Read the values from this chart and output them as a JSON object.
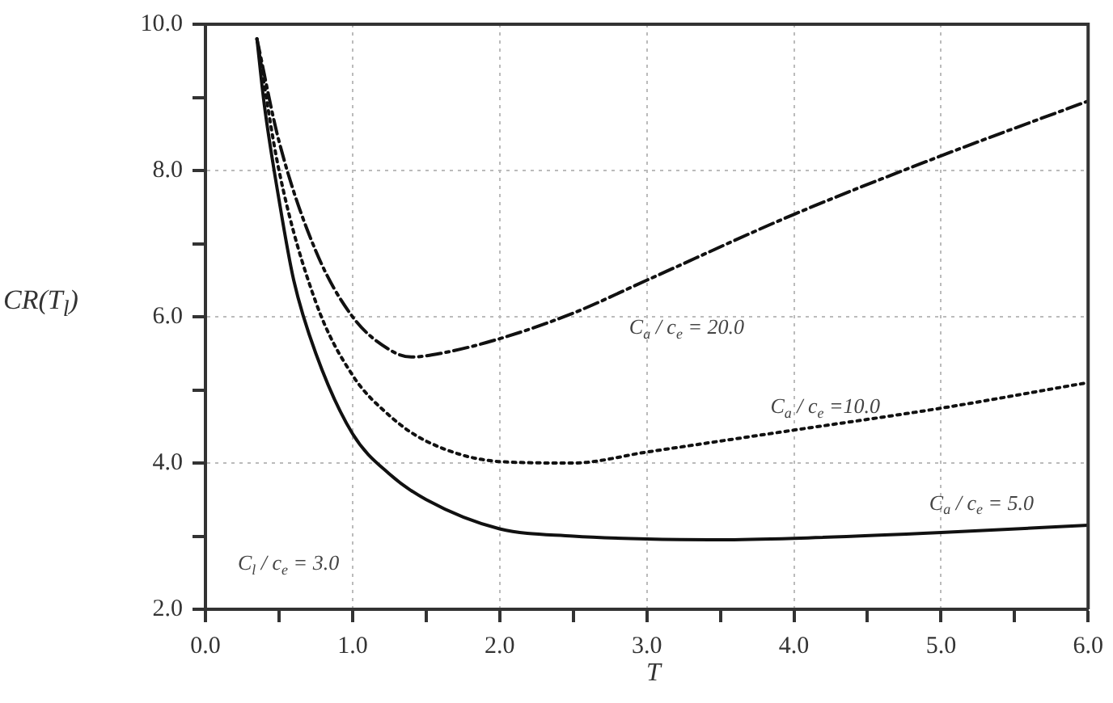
{
  "chart_data": {
    "type": "line",
    "xlabel": "T",
    "ylabel": "CR(T$_{l}$)",
    "xlim": [
      0,
      6
    ],
    "ylim": [
      2,
      10
    ],
    "xticks": [
      {
        "value": 0,
        "label": "0.0"
      },
      {
        "value": 0.5,
        "label": null
      },
      {
        "value": 1,
        "label": "1.0"
      },
      {
        "value": 1.5,
        "label": null
      },
      {
        "value": 2,
        "label": "2.0"
      },
      {
        "value": 2.5,
        "label": null
      },
      {
        "value": 3,
        "label": "3.0"
      },
      {
        "value": 3.5,
        "label": null
      },
      {
        "value": 4,
        "label": "4.0"
      },
      {
        "value": 4.5,
        "label": null
      },
      {
        "value": 5,
        "label": "5.0"
      },
      {
        "value": 5.5,
        "label": null
      },
      {
        "value": 6,
        "label": "6.0"
      }
    ],
    "yticks": [
      {
        "value": 2,
        "label": "2.0"
      },
      {
        "value": 3,
        "label": null
      },
      {
        "value": 4,
        "label": "4.0"
      },
      {
        "value": 5,
        "label": null
      },
      {
        "value": 6,
        "label": "6.0"
      },
      {
        "value": 7,
        "label": null
      },
      {
        "value": 8,
        "label": "8.0"
      },
      {
        "value": 9,
        "label": null
      },
      {
        "value": 10,
        "label": "10.0"
      }
    ],
    "grid": true,
    "legend": false,
    "marker": "none",
    "series": [
      {
        "name": "C$_{a}$ / c$_{e}$ = 5.0",
        "color": "#111111",
        "line_style": "solid",
        "x": [
          0.35,
          0.4,
          0.5,
          0.6,
          0.75,
          1.0,
          1.25,
          1.5,
          2.0,
          2.5,
          3.0,
          3.5,
          4.0,
          5.0,
          6.0
        ],
        "values": [
          9.8,
          8.9,
          7.6,
          6.5,
          5.5,
          4.4,
          3.85,
          3.5,
          3.1,
          3.0,
          2.96,
          2.95,
          2.97,
          3.05,
          3.15
        ]
      },
      {
        "name": "C$_{a}$ / c$_{e}$ =10.0",
        "color": "#111111",
        "line_style": "dotted",
        "x": [
          0.35,
          0.5,
          0.75,
          1.0,
          1.25,
          1.5,
          2.0,
          2.5,
          3.0,
          4.0,
          5.0,
          6.0
        ],
        "values": [
          9.8,
          8.0,
          6.2,
          5.2,
          4.65,
          4.3,
          4.02,
          4.0,
          4.15,
          4.45,
          4.75,
          5.1
        ]
      },
      {
        "name": "C$_{a}$ / c$_{e}$ = 20.0",
        "color": "#111111",
        "line_style": "dashed",
        "x": [
          0.35,
          0.5,
          0.75,
          1.0,
          1.25,
          1.4,
          1.6,
          2.0,
          2.5,
          3.0,
          4.0,
          5.0,
          6.0
        ],
        "values": [
          9.8,
          8.4,
          6.9,
          6.0,
          5.55,
          5.45,
          5.5,
          5.7,
          6.05,
          6.5,
          7.4,
          8.2,
          8.95
        ]
      }
    ],
    "annotations": [
      "C$_{l}$ / c$_{e}$ = 3.0"
    ]
  }
}
